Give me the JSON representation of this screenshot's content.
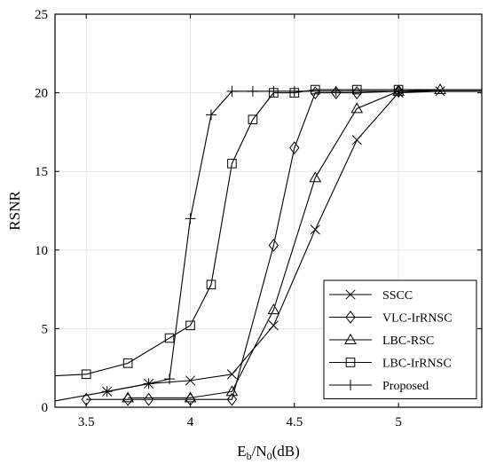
{
  "chart_data": {
    "type": "line",
    "xlabel": {
      "main": "E",
      "sub1": "b",
      "mid": "/N",
      "sub2": "0",
      "tail": "(dB)"
    },
    "ylabel": "RSNR",
    "xlim": [
      3.35,
      5.4
    ],
    "ylim": [
      0,
      25
    ],
    "xticks": [
      3.5,
      4,
      4.5,
      5
    ],
    "xtick_labels": [
      "3.5",
      "4",
      "4.5",
      "5"
    ],
    "yticks": [
      0,
      5,
      10,
      15,
      20,
      25
    ],
    "ytick_labels": [
      "0",
      "5",
      "10",
      "15",
      "20",
      "25"
    ],
    "legend_position": "bottom-right",
    "series": [
      {
        "name": "SSCC",
        "marker": "x",
        "x": [
          3.6,
          3.8,
          4.0,
          4.2,
          4.4,
          4.6,
          4.8,
          5.0,
          5.2,
          5.4
        ],
        "y": [
          1.0,
          1.5,
          1.7,
          2.1,
          5.2,
          11.3,
          17.0,
          20.0,
          20.1,
          20.1
        ]
      },
      {
        "name": "VLC-IrRNSC",
        "marker": "diamond",
        "x": [
          3.5,
          3.7,
          3.8,
          4.0,
          4.2,
          4.4,
          4.5,
          4.6,
          4.7,
          4.8,
          5.0,
          5.4
        ],
        "y": [
          0.5,
          0.5,
          0.5,
          0.5,
          0.5,
          10.3,
          16.5,
          20.0,
          20.0,
          20.0,
          20.1,
          20.1
        ]
      },
      {
        "name": "LBC-RSC",
        "marker": "triangle",
        "x": [
          3.7,
          4.0,
          4.2,
          4.4,
          4.6,
          4.8,
          5.0,
          5.2,
          5.4
        ],
        "y": [
          0.6,
          0.6,
          1.0,
          6.2,
          14.6,
          19.0,
          20.1,
          20.2,
          20.2
        ]
      },
      {
        "name": "LBC-IrRNSC",
        "marker": "square",
        "x": [
          3.35,
          3.5,
          3.7,
          3.9,
          4.0,
          4.1,
          4.2,
          4.3,
          4.4,
          4.5,
          4.6,
          4.8,
          5.0,
          5.4
        ],
        "y": [
          2.0,
          2.1,
          2.8,
          4.4,
          5.2,
          7.8,
          15.5,
          18.3,
          20.0,
          20.0,
          20.2,
          20.2,
          20.2,
          20.2
        ]
      },
      {
        "name": "Proposed",
        "marker": "plus",
        "x": [
          3.35,
          3.6,
          3.8,
          3.9,
          4.0,
          4.1,
          4.2,
          4.3,
          4.4,
          4.5,
          4.7,
          5.0,
          5.4
        ],
        "y": [
          0.4,
          1.0,
          1.5,
          1.8,
          12.0,
          18.6,
          20.1,
          20.1,
          20.1,
          20.1,
          20.1,
          20.1,
          20.1
        ]
      }
    ]
  }
}
